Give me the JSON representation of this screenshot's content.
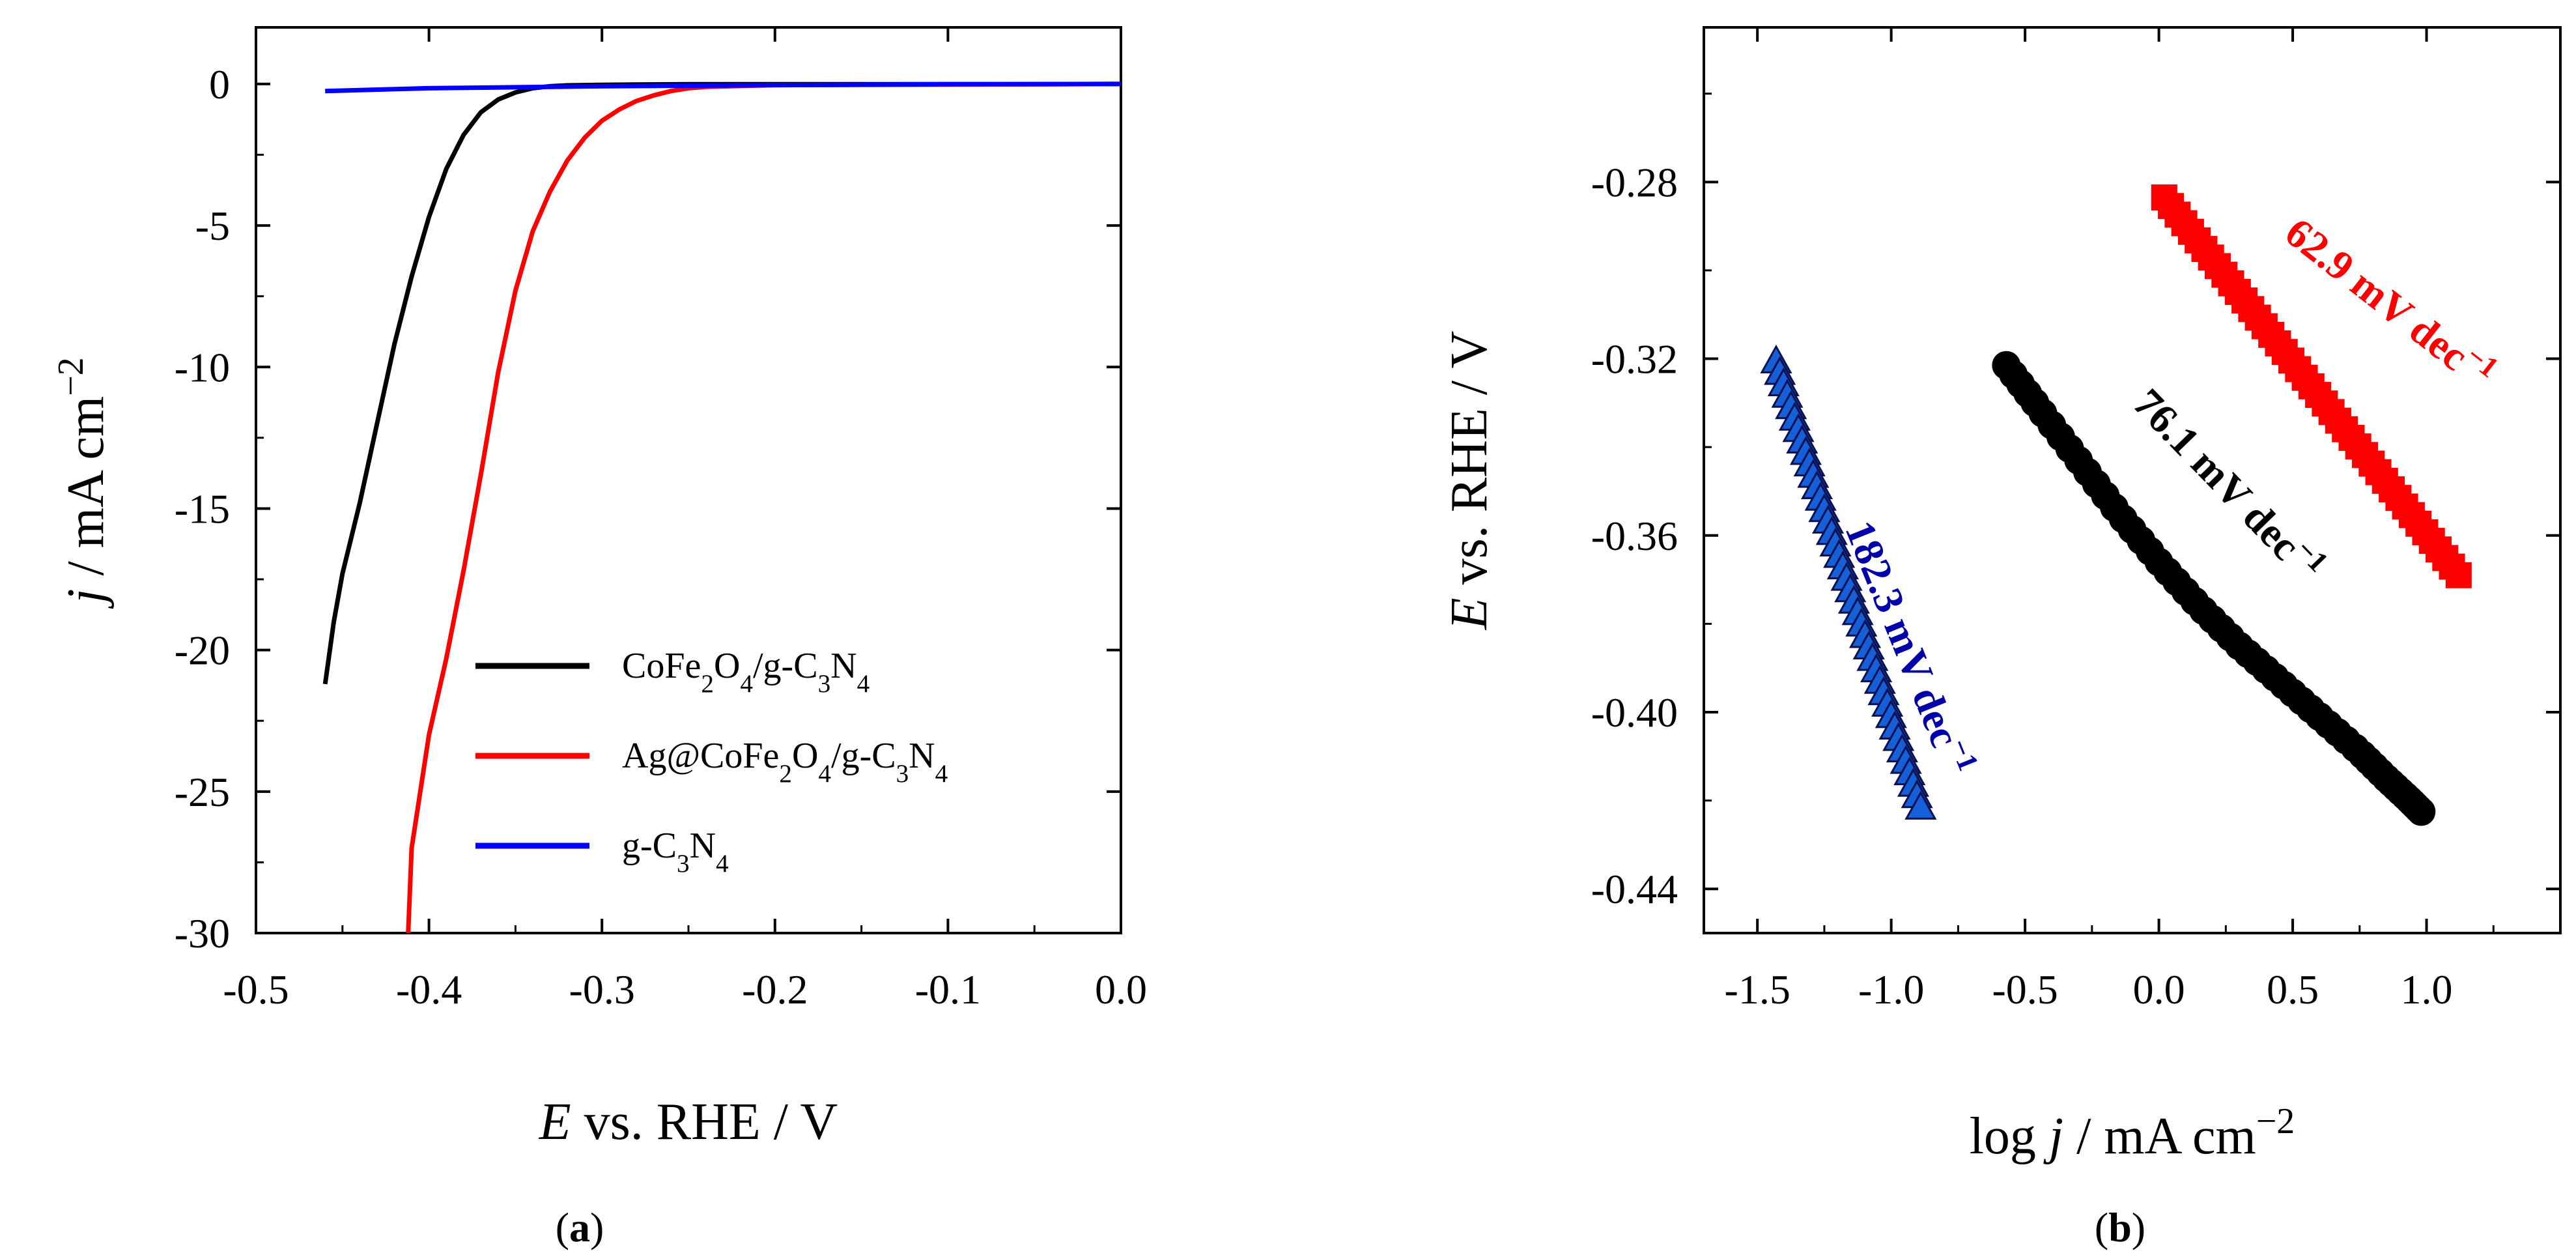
{
  "chart_data": [
    {
      "type": "line",
      "panel_label": "(a)",
      "panel_letter": "a",
      "xlabel": "E vs. RHE / V",
      "xlabel_italic": "E",
      "xlabel_rest": " vs. RHE / V",
      "ylabel": "j / mA cm−2",
      "ylabel_italic": "j",
      "ylabel_rest": " / mA cm",
      "ylabel_sup": "−2",
      "xlim": [
        -0.5,
        0.0
      ],
      "ylim": [
        -30,
        2
      ],
      "xticks": [
        -0.5,
        -0.4,
        -0.3,
        -0.2,
        -0.1,
        0.0
      ],
      "xtick_labels": [
        "-0.5",
        "-0.4",
        "-0.3",
        "-0.2",
        "-0.1",
        "0.0"
      ],
      "yticks": [
        0,
        -5,
        -10,
        -15,
        -20,
        -25,
        -30
      ],
      "ytick_labels": [
        "0",
        "-5",
        "-10",
        "-15",
        "-20",
        "-25",
        "-30"
      ],
      "legend_position": "lower-right",
      "series": [
        {
          "name": "CoFe2O4/g-C3N4",
          "legend": [
            [
              "CoFe",
              ""
            ],
            [
              "2",
              "sub"
            ],
            [
              "O",
              ""
            ],
            [
              "4",
              "sub"
            ],
            [
              "/g-C",
              ""
            ],
            [
              "3",
              "sub"
            ],
            [
              "N",
              ""
            ],
            [
              "4",
              "sub"
            ]
          ],
          "color": "#000000",
          "x": [
            -0.46,
            -0.455,
            -0.45,
            -0.44,
            -0.43,
            -0.42,
            -0.41,
            -0.4,
            -0.39,
            -0.38,
            -0.37,
            -0.36,
            -0.35,
            -0.34,
            -0.33,
            -0.32,
            -0.3,
            -0.28,
            -0.25,
            -0.2,
            -0.1,
            0.0
          ],
          "y": [
            -21.2,
            -19.0,
            -17.3,
            -14.8,
            -12.0,
            -9.2,
            -6.8,
            -4.7,
            -3.0,
            -1.8,
            -1.0,
            -0.55,
            -0.3,
            -0.15,
            -0.08,
            -0.05,
            -0.03,
            -0.02,
            -0.01,
            -0.01,
            -0.01,
            0.0
          ]
        },
        {
          "name": "Ag@CoFe2O4/g-C3N4",
          "legend": [
            [
              "Ag@CoFe",
              ""
            ],
            [
              "2",
              "sub"
            ],
            [
              "O",
              ""
            ],
            [
              "4",
              "sub"
            ],
            [
              "/g-C",
              ""
            ],
            [
              "3",
              "sub"
            ],
            [
              "N",
              ""
            ],
            [
              "4",
              "sub"
            ]
          ],
          "color": "#ff0000",
          "x": [
            -0.412,
            -0.41,
            -0.405,
            -0.4,
            -0.39,
            -0.38,
            -0.37,
            -0.36,
            -0.35,
            -0.34,
            -0.33,
            -0.32,
            -0.31,
            -0.3,
            -0.29,
            -0.28,
            -0.27,
            -0.26,
            -0.25,
            -0.24,
            -0.2,
            -0.1,
            0.0
          ],
          "y": [
            -30.0,
            -27.0,
            -25.0,
            -23.0,
            -20.3,
            -17.2,
            -13.8,
            -10.2,
            -7.3,
            -5.2,
            -3.8,
            -2.7,
            -1.9,
            -1.3,
            -0.9,
            -0.6,
            -0.4,
            -0.25,
            -0.15,
            -0.1,
            -0.04,
            -0.02,
            0.0
          ]
        },
        {
          "name": "g-C3N4",
          "legend": [
            [
              "g-C",
              ""
            ],
            [
              "3",
              "sub"
            ],
            [
              "N",
              ""
            ],
            [
              "4",
              "sub"
            ]
          ],
          "color": "#0000ff",
          "x": [
            -0.46,
            -0.4,
            -0.3,
            -0.2,
            -0.1,
            0.0
          ],
          "y": [
            -0.25,
            -0.15,
            -0.08,
            -0.04,
            -0.01,
            0.0
          ]
        }
      ]
    },
    {
      "type": "scatter",
      "panel_label": "(b)",
      "panel_letter": "b",
      "xlabel": "log j / mA cm−2",
      "xlabel_pre": "log ",
      "xlabel_italic": "j",
      "xlabel_rest": " / mA cm",
      "xlabel_sup": "−2",
      "ylabel": "E vs. RHE / V",
      "ylabel_italic": "E",
      "ylabel_rest": " vs. RHE / V",
      "xlim": [
        -1.7,
        1.5
      ],
      "ylim": [
        -0.45,
        -0.245
      ],
      "xticks": [
        -1.5,
        -1.0,
        -0.5,
        0.0,
        0.5,
        1.0
      ],
      "xtick_labels": [
        "-1.5",
        "-1.0",
        "-0.5",
        "0.0",
        "0.5",
        "1.0"
      ],
      "yticks": [
        -0.28,
        -0.32,
        -0.36,
        -0.4,
        -0.44
      ],
      "ytick_labels": [
        "-0.28",
        "-0.32",
        "-0.36",
        "-0.40",
        "-0.44"
      ],
      "series": [
        {
          "name": "g-C3N4",
          "marker": "triangle",
          "color": "#0000aa",
          "slope_label": "182.3 mV dec",
          "slope_sup": "−1",
          "x_range": [
            -1.43,
            -0.89
          ],
          "y_range": [
            -0.3205,
            -0.4215
          ],
          "n_points": 40
        },
        {
          "name": "CoFe2O4/g-C3N4",
          "marker": "circle",
          "color": "#000000",
          "slope_label": "76.1 mV dec",
          "slope_sup": "−1",
          "x": [
            -0.57,
            -0.45,
            -0.3,
            -0.15,
            0.0,
            0.15,
            0.3,
            0.45,
            0.6,
            0.75,
            0.85,
            0.93,
            0.98
          ],
          "y": [
            -0.3215,
            -0.331,
            -0.343,
            -0.355,
            -0.366,
            -0.376,
            -0.385,
            -0.393,
            -0.401,
            -0.409,
            -0.415,
            -0.4195,
            -0.4225
          ],
          "n_points": 55
        },
        {
          "name": "Ag@CoFe2O4/g-C3N4",
          "marker": "square",
          "color": "#ff0000",
          "slope_label": "62.9 mV dec",
          "slope_sup": "−1",
          "x_range": [
            0.02,
            1.12
          ],
          "y_range": [
            -0.2835,
            -0.369
          ],
          "n_points": 45
        }
      ]
    }
  ]
}
